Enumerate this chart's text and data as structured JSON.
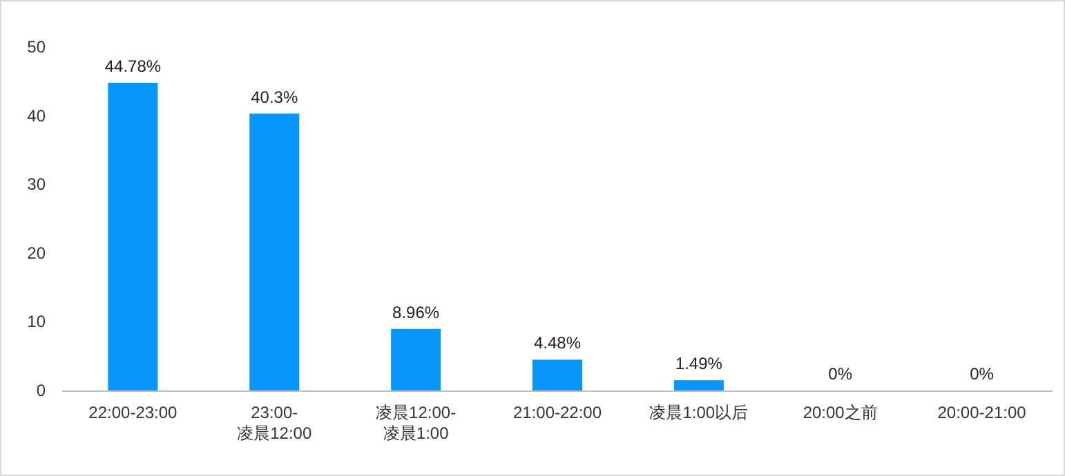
{
  "chart_data": {
    "type": "bar",
    "categories": [
      "22:00-23:00",
      "23:00-\n凌晨12:00",
      "凌晨12:00-\n凌晨1:00",
      "21:00-22:00",
      "凌晨1:00以后",
      "20:00之前",
      "20:00-21:00"
    ],
    "values": [
      44.78,
      40.3,
      8.96,
      4.48,
      1.49,
      0,
      0
    ],
    "value_labels": [
      "44.78%",
      "40.3%",
      "8.96%",
      "4.48%",
      "1.49%",
      "0%",
      "0%"
    ],
    "color": "#0896f8",
    "ylim": [
      0,
      50
    ],
    "yticks": [
      0,
      10,
      20,
      30,
      40,
      50
    ],
    "grid": false
  }
}
